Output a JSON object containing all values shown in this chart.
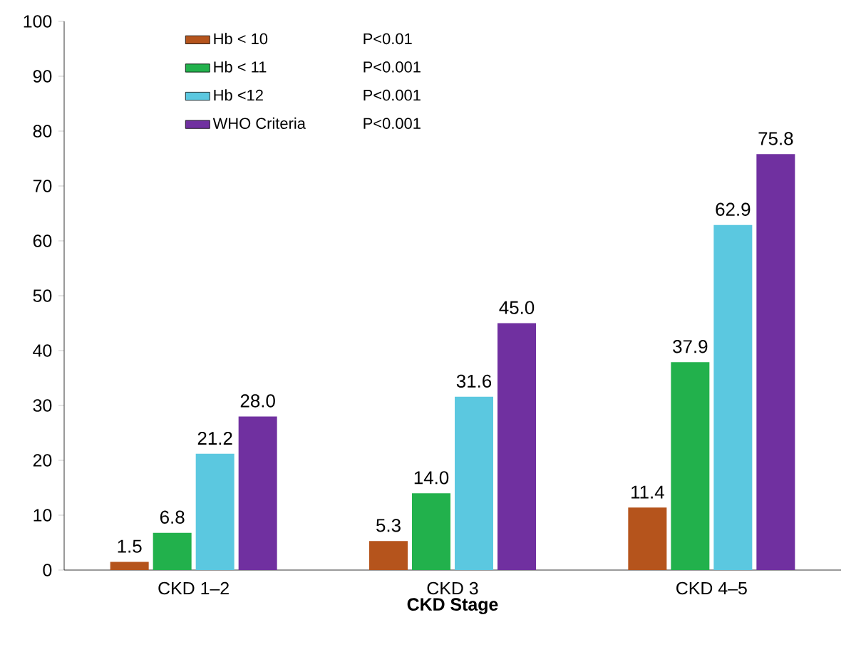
{
  "chart_data": {
    "type": "bar",
    "xlabel": "CKD Stage",
    "categories": [
      "CKD 1–2",
      "CKD 3",
      "CKD 4–5"
    ],
    "series": [
      {
        "name": "Hb < 10",
        "color": "#b5541c",
        "values": [
          1.5,
          5.3,
          11.4
        ],
        "value_labels": [
          "1.5",
          "5.3",
          "11.4"
        ]
      },
      {
        "name": "Hb < 11",
        "color": "#22b14c",
        "values": [
          6.8,
          14.0,
          37.9
        ],
        "value_labels": [
          "6.8",
          "14.0",
          "37.9"
        ]
      },
      {
        "name": "Hb <12",
        "color": "#5bc8e0",
        "values": [
          21.2,
          31.6,
          62.9
        ],
        "value_labels": [
          "21.2",
          "31.6",
          "62.9"
        ]
      },
      {
        "name": "WHO Criteria",
        "color": "#7030a0",
        "values": [
          28.0,
          45.0,
          75.8
        ],
        "value_labels": [
          "28.0",
          "45.0",
          "75.8"
        ]
      }
    ],
    "annotations": [
      "P<0.01",
      "P<0.001",
      "P<0.001",
      "P<0.001"
    ],
    "ylim": [
      0,
      100
    ],
    "yticks": [
      0,
      10,
      20,
      30,
      40,
      50,
      60,
      70,
      80,
      90,
      100
    ],
    "grid": false,
    "legend": "top left"
  }
}
